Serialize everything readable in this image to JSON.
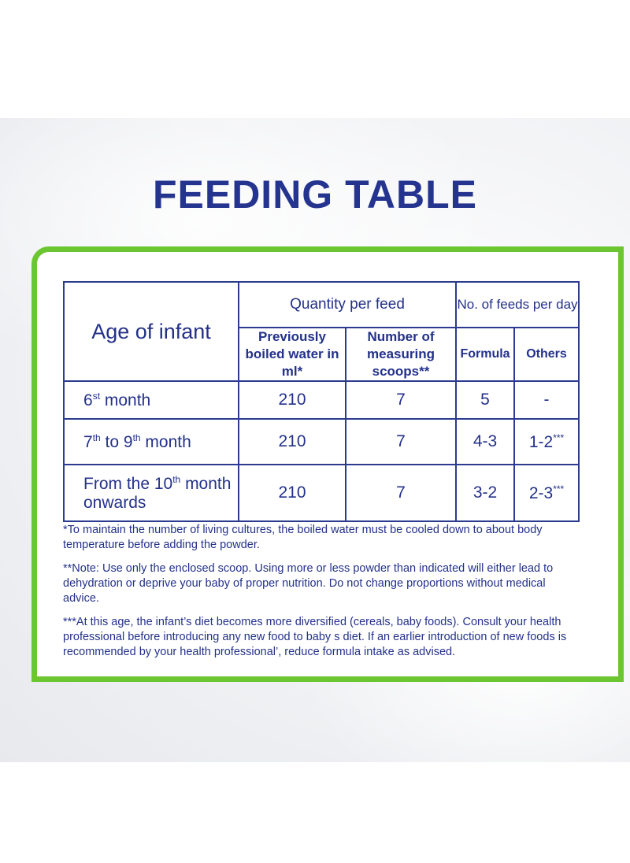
{
  "title": "FEEDING TABLE",
  "table": {
    "age_header": "Age of infant",
    "quantity_header": "Quantity per feed",
    "feeds_header": "No. of feeds per day",
    "sub_headers": {
      "water": "Previously boiled water in ml*",
      "scoops": "Number of measuring scoops**",
      "formula": "Formula",
      "others": "Others"
    },
    "rows": [
      {
        "age_pre": "6",
        "age_sup": "st",
        "age_post": " month",
        "water": "210",
        "scoops": "7",
        "formula": "5",
        "others": "-"
      },
      {
        "age_pre": "7",
        "age_sup": "th",
        "age_mid": " to 9",
        "age_sup2": "th",
        "age_post": " month",
        "water": "210",
        "scoops": "7",
        "formula": "4-3",
        "others": "1-2",
        "others_sup": "***"
      },
      {
        "age_pre": "From the 10",
        "age_sup": "th",
        "age_post": " month onwards",
        "water": "210",
        "scoops": "7",
        "formula": "3-2",
        "others": "2-3",
        "others_sup": "***"
      }
    ]
  },
  "notes": [
    "*To maintain the number of living cultures, the boiled water must be cooled down to about body temperature before adding the powder.",
    "**Note: Use only the enclosed scoop. Using more or less powder than indicated will either lead to dehydration or deprive your baby of proper nutrition. Do not change proportions without medical advice.",
    "***At this age, the infant’s diet becomes more diversified (cereals, baby foods). Consult your health professional before introducing any new food to baby s diet. If an earlier introduction of new foods is recommended by your health professional’, reduce formula intake as advised."
  ],
  "colors": {
    "text": "#23318a",
    "border_green": "#6cc631",
    "background": "#eceef1"
  }
}
